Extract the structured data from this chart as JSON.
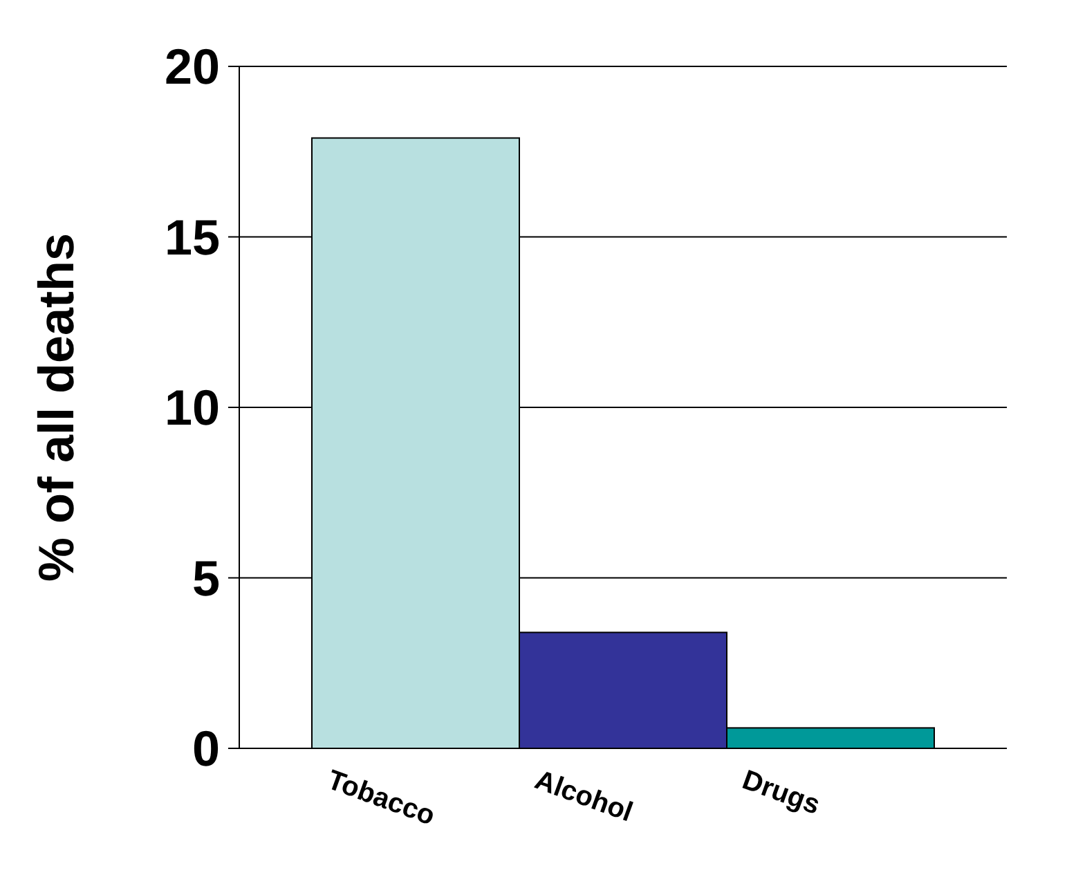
{
  "chart_data": {
    "type": "bar",
    "ylabel": "% of all deaths",
    "categories": [
      "Tobacco",
      "Alcohol",
      "Drugs"
    ],
    "values": [
      17.9,
      3.4,
      0.6
    ],
    "colors": [
      "#b8e0e0",
      "#333399",
      "#009999"
    ],
    "ylim": [
      0,
      20
    ],
    "yticks": [
      0,
      5,
      10,
      15,
      20
    ],
    "grid": "y"
  }
}
